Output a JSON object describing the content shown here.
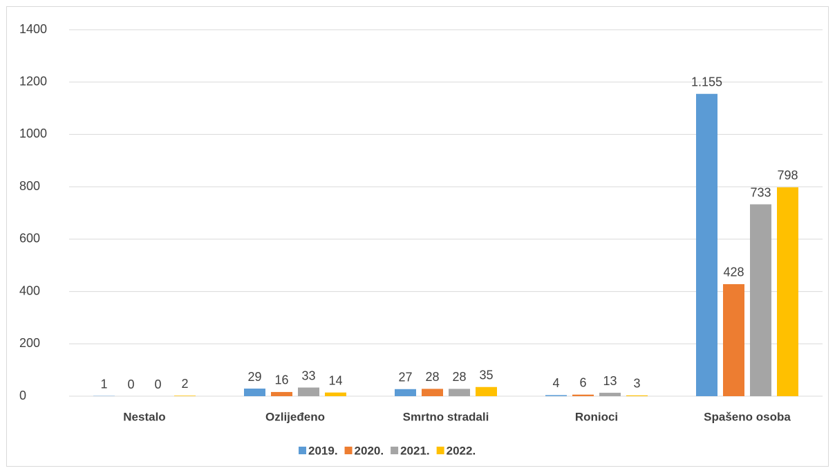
{
  "chart_data": {
    "type": "bar",
    "categories": [
      "Nestalo",
      "Ozlijeđeno",
      "Smrtno stradali",
      "Ronioci",
      "Spašeno osoba"
    ],
    "series": [
      {
        "name": "2019.",
        "color": "#5b9bd5",
        "values": [
          1,
          29,
          27,
          4,
          1155
        ],
        "value_labels": [
          "1",
          "29",
          "27",
          "4",
          "1.155"
        ]
      },
      {
        "name": "2020.",
        "color": "#ed7d31",
        "values": [
          0,
          16,
          28,
          6,
          428
        ]
      },
      {
        "name": "2021.",
        "color": "#a5a5a5",
        "values": [
          0,
          33,
          28,
          13,
          733
        ]
      },
      {
        "name": "2022.",
        "color": "#ffc000",
        "values": [
          2,
          14,
          35,
          3,
          798
        ]
      }
    ],
    "ylim": [
      0,
      1400
    ],
    "yticks": [
      0,
      200,
      400,
      600,
      800,
      1000,
      1200,
      1400
    ],
    "grid": true,
    "legend": "bottom"
  }
}
